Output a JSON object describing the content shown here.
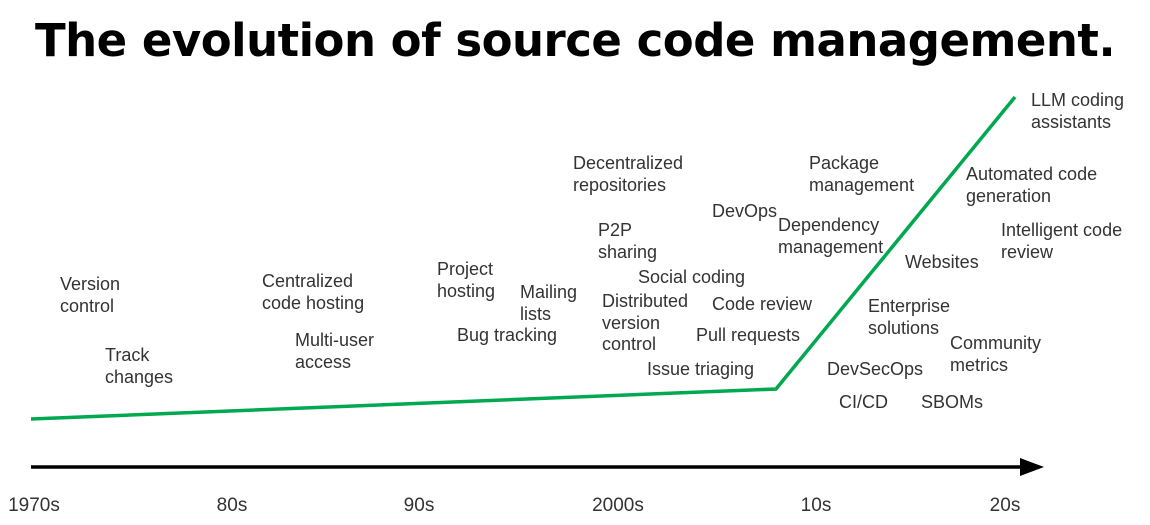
{
  "title": "The evolution of source code management.",
  "colors": {
    "trend_line": "#00a84f",
    "axis": "#000000",
    "text": "#333333"
  },
  "timeline": {
    "ticks": [
      "1970s",
      "80s",
      "90s",
      "2000s",
      "10s",
      "20s"
    ]
  },
  "features": [
    {
      "id": "version-control",
      "text": "Version\ncontrol"
    },
    {
      "id": "track-changes",
      "text": "Track\nchanges"
    },
    {
      "id": "centralized-code-hosting",
      "text": "Centralized\ncode hosting"
    },
    {
      "id": "multi-user-access",
      "text": "Multi-user\naccess"
    },
    {
      "id": "project-hosting",
      "text": "Project\nhosting"
    },
    {
      "id": "bug-tracking",
      "text": "Bug tracking"
    },
    {
      "id": "mailing-lists",
      "text": "Mailing\nlists"
    },
    {
      "id": "decentralized-repositories",
      "text": "Decentralized\nrepositories"
    },
    {
      "id": "p2p-sharing",
      "text": "P2P\nsharing"
    },
    {
      "id": "social-coding",
      "text": "Social coding"
    },
    {
      "id": "distributed-version-control",
      "text": "Distributed\nversion\ncontrol"
    },
    {
      "id": "devops",
      "text": "DevOps"
    },
    {
      "id": "code-review",
      "text": "Code review"
    },
    {
      "id": "pull-requests",
      "text": "Pull requests"
    },
    {
      "id": "issue-triaging",
      "text": "Issue triaging"
    },
    {
      "id": "package-management",
      "text": "Package\nmanagement"
    },
    {
      "id": "dependency-management",
      "text": "Dependency\nmanagement"
    },
    {
      "id": "websites",
      "text": "Websites"
    },
    {
      "id": "enterprise-solutions",
      "text": "Enterprise\nsolutions"
    },
    {
      "id": "devsecops",
      "text": "DevSecOps"
    },
    {
      "id": "ci-cd",
      "text": "CI/CD"
    },
    {
      "id": "community-metrics",
      "text": "Community\nmetrics"
    },
    {
      "id": "sboms",
      "text": "SBOMs"
    },
    {
      "id": "llm-coding-assistants",
      "text": "LLM coding\nassistants"
    },
    {
      "id": "automated-code-generation",
      "text": "Automated code\ngeneration"
    },
    {
      "id": "intelligent-code-review",
      "text": "Intelligent code\nreview"
    }
  ]
}
